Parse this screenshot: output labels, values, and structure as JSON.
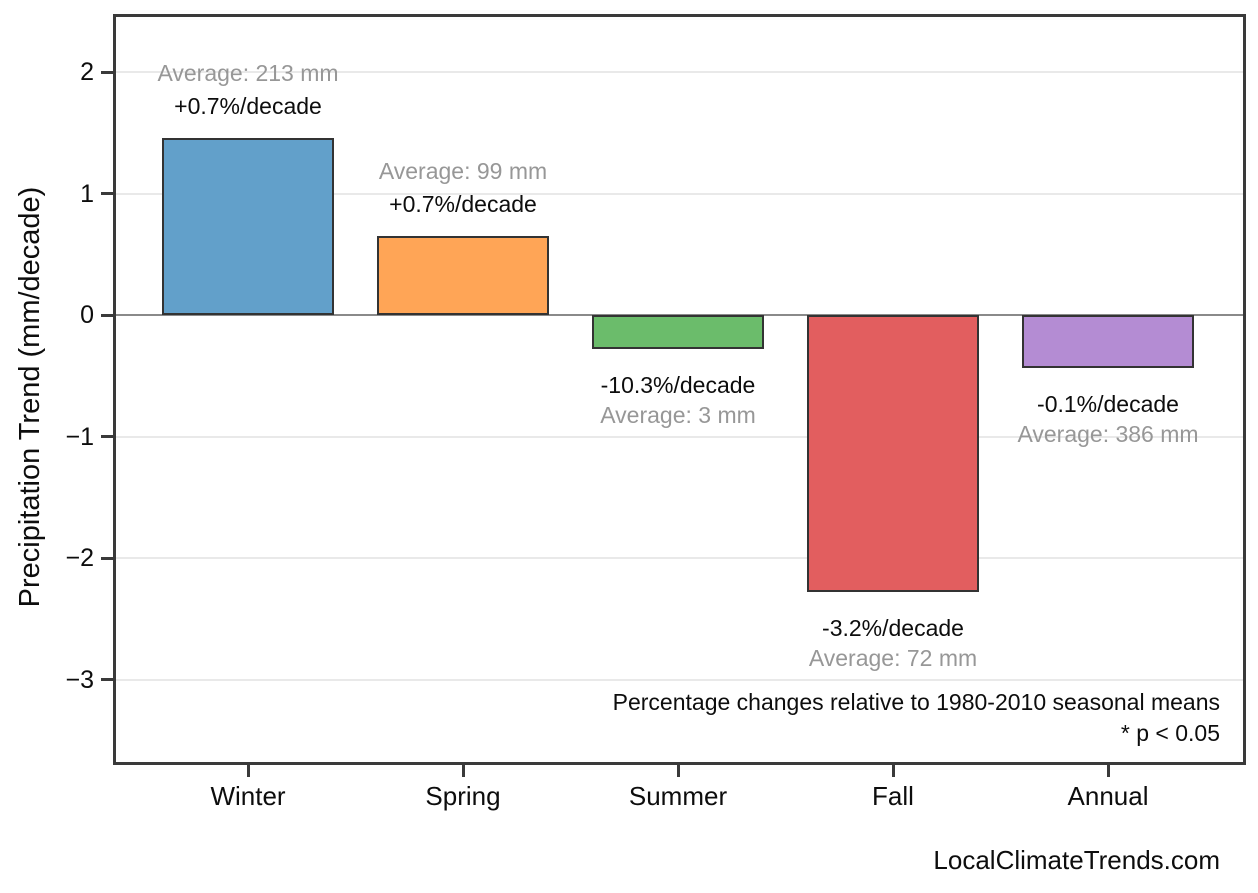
{
  "chart_data": {
    "type": "bar",
    "title": "",
    "xlabel": "",
    "ylabel": "Precipitation Trend (mm/decade)",
    "categories": [
      "Winter",
      "Spring",
      "Summer",
      "Fall",
      "Annual"
    ],
    "values": [
      1.46,
      0.65,
      -0.28,
      -2.28,
      -0.44
    ],
    "values_unit": "mm/decade",
    "percent_labels": [
      "+0.7%/decade",
      "+0.7%/decade",
      "-10.3%/decade",
      "-3.2%/decade",
      "-0.1%/decade"
    ],
    "average_labels": [
      "Average: 213 mm",
      "Average: 99 mm",
      "Average: 3 mm",
      "Average: 72 mm",
      "Average: 386 mm"
    ],
    "averages_mm": [
      213,
      99,
      3,
      72,
      386
    ],
    "percent_per_decade": [
      0.7,
      0.7,
      -10.3,
      -3.2,
      -0.1
    ],
    "bar_colors": [
      "#62a0ca",
      "#ffa556",
      "#6bbc6b",
      "#e25e5f",
      "#b48cd3"
    ],
    "bar_edge_color": "#333333",
    "yticks": [
      2,
      1,
      0,
      -1,
      -2,
      -3
    ],
    "ytick_labels": [
      "2",
      "1",
      "0",
      "−1",
      "−2",
      "−3"
    ],
    "ylim": [
      -3.7,
      2.45
    ],
    "grid": true,
    "legend": null,
    "note_line1": "Percentage changes relative to 1980-2010 seasonal means",
    "note_line2": "* p < 0.05",
    "colors": {
      "grid": "#e9e9e9",
      "zero_line": "#8a8a8a",
      "frame": "#3a3a3a",
      "average_text": "#979797",
      "percent_text": "#0d0d0d"
    }
  },
  "watermark": "LocalClimateTrends.com"
}
